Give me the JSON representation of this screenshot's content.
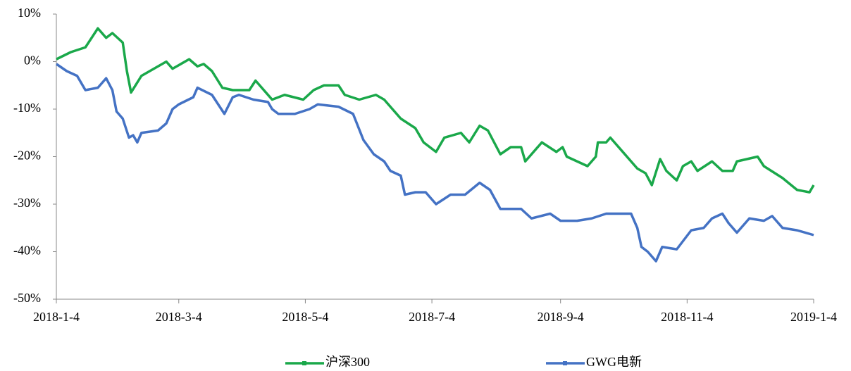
{
  "chart_data": {
    "type": "line",
    "ylim": [
      -50,
      10
    ],
    "yticks": [
      {
        "value": 10,
        "label": "10%"
      },
      {
        "value": 0,
        "label": "0%"
      },
      {
        "value": -10,
        "label": "-10%"
      },
      {
        "value": -20,
        "label": "-20%"
      },
      {
        "value": -30,
        "label": "-30%"
      },
      {
        "value": -40,
        "label": "-40%"
      },
      {
        "value": -50,
        "label": "-50%"
      }
    ],
    "xlim": [
      "2018-1-4",
      "2019-1-4"
    ],
    "xticks": [
      "2018-1-4",
      "2018-3-4",
      "2018-5-4",
      "2018-7-4",
      "2018-9-4",
      "2018-11-4",
      "2019-1-4"
    ],
    "legend": "bottom",
    "series": [
      {
        "name": "沪深300",
        "color": "#1aa84a",
        "x": [
          "2018-1-4",
          "2018-1-11",
          "2018-1-18",
          "2018-1-24",
          "2018-1-28",
          "2018-1-31",
          "2018-2-5",
          "2018-2-7",
          "2018-2-9",
          "2018-2-14",
          "2018-2-26",
          "2018-3-1",
          "2018-3-9",
          "2018-3-13",
          "2018-3-16",
          "2018-3-20",
          "2018-3-25",
          "2018-3-30",
          "2018-4-7",
          "2018-4-10",
          "2018-4-18",
          "2018-4-24",
          "2018-5-3",
          "2018-5-8",
          "2018-5-13",
          "2018-5-20",
          "2018-5-23",
          "2018-5-30",
          "2018-6-7",
          "2018-6-11",
          "2018-6-19",
          "2018-6-26",
          "2018-6-30",
          "2018-7-3",
          "2018-7-6",
          "2018-7-10",
          "2018-7-18",
          "2018-7-22",
          "2018-7-27",
          "2018-7-31",
          "2018-8-6",
          "2018-8-11",
          "2018-8-16",
          "2018-8-18",
          "2018-8-26",
          "2018-9-2",
          "2018-9-5",
          "2018-9-7",
          "2018-9-12",
          "2018-9-17",
          "2018-9-21",
          "2018-9-22",
          "2018-9-26",
          "2018-9-28",
          "2018-10-11",
          "2018-10-15",
          "2018-10-18",
          "2018-10-22",
          "2018-10-25",
          "2018-10-30",
          "2018-11-2",
          "2018-11-6",
          "2018-11-9",
          "2018-11-16",
          "2018-11-21",
          "2018-11-26",
          "2018-11-28",
          "2018-12-8",
          "2018-12-11",
          "2018-12-20",
          "2018-12-27",
          "2019-1-2",
          "2019-1-4"
        ],
        "values": [
          0.5,
          2,
          3,
          7,
          5,
          6,
          4,
          -2,
          -6.5,
          -3,
          0,
          -1.5,
          0.5,
          -1,
          -0.5,
          -2,
          -5.5,
          -6,
          -6,
          -4,
          -8,
          -7,
          -8,
          -6,
          -5,
          -5,
          -7,
          -8,
          -7,
          -8,
          -12,
          -14,
          -17,
          -18,
          -19,
          -16,
          -15,
          -17,
          -13.5,
          -14.5,
          -19.5,
          -18,
          -18,
          -21,
          -17,
          -19,
          -18,
          -20,
          -21,
          -22,
          -20,
          -17,
          -17,
          -16,
          -22.5,
          -23.5,
          -26,
          -20.5,
          -23,
          -25,
          -22,
          -21,
          -23,
          -21,
          -23,
          -23,
          -21,
          -20,
          -22,
          -24.5,
          -27,
          -27.5,
          -26
        ]
      },
      {
        "name": "GWG电新",
        "color": "#4472c4",
        "x": [
          "2018-1-4",
          "2018-1-9",
          "2018-1-14",
          "2018-1-18",
          "2018-1-24",
          "2018-1-28",
          "2018-1-31",
          "2018-2-2",
          "2018-2-5",
          "2018-2-8",
          "2018-2-10",
          "2018-2-12",
          "2018-2-14",
          "2018-2-22",
          "2018-2-26",
          "2018-3-1",
          "2018-3-4",
          "2018-3-11",
          "2018-3-13",
          "2018-3-20",
          "2018-3-26",
          "2018-3-30",
          "2018-4-2",
          "2018-4-9",
          "2018-4-16",
          "2018-4-18",
          "2018-4-21",
          "2018-4-29",
          "2018-5-6",
          "2018-5-10",
          "2018-5-20",
          "2018-5-27",
          "2018-6-1",
          "2018-6-6",
          "2018-6-11",
          "2018-6-14",
          "2018-6-19",
          "2018-6-21",
          "2018-6-26",
          "2018-7-1",
          "2018-7-6",
          "2018-7-13",
          "2018-7-20",
          "2018-7-27",
          "2018-8-1",
          "2018-8-6",
          "2018-8-11",
          "2018-8-16",
          "2018-8-21",
          "2018-8-30",
          "2018-9-4",
          "2018-9-12",
          "2018-9-19",
          "2018-9-26",
          "2018-10-8",
          "2018-10-11",
          "2018-10-13",
          "2018-10-16",
          "2018-10-20",
          "2018-10-23",
          "2018-10-30",
          "2018-11-6",
          "2018-11-12",
          "2018-11-16",
          "2018-11-21",
          "2018-11-24",
          "2018-11-28",
          "2018-12-4",
          "2018-12-11",
          "2018-12-15",
          "2018-12-20",
          "2018-12-27",
          "2019-1-4"
        ],
        "values": [
          -0.5,
          -2,
          -3,
          -6,
          -5.5,
          -3.5,
          -6,
          -10.5,
          -12,
          -16,
          -15.5,
          -17,
          -15,
          -14.5,
          -13,
          -10,
          -9,
          -7.5,
          -5.5,
          -7,
          -11,
          -7.5,
          -7,
          -8,
          -8.5,
          -10,
          -11,
          -11,
          -10,
          -9,
          -9.5,
          -11,
          -16.5,
          -19.5,
          -21,
          -23,
          -24,
          -28,
          -27.5,
          -27.5,
          -30,
          -28,
          -28,
          -25.5,
          -27,
          -31,
          -31,
          -31,
          -33,
          -32,
          -33.5,
          -33.5,
          -33,
          -32,
          -32,
          -35,
          -39,
          -40,
          -42,
          -39,
          -39.5,
          -35.5,
          -35,
          -33,
          -32,
          -34,
          -36,
          -33,
          -33.5,
          -32.5,
          -35,
          -35.5,
          -36.5
        ]
      }
    ]
  }
}
